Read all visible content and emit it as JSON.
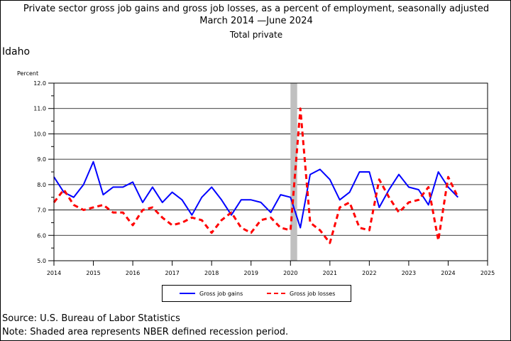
{
  "title": {
    "line1": "Private sector gross job gains and gross job losses, as a percent of employment, seasonally adjusted",
    "line2": "March 2014 —June 2024",
    "line3": "Total private"
  },
  "region": "Idaho",
  "footer": {
    "source": "Source: U.S. Bureau of Labor Statistics",
    "note": "Note: Shaded area represents NBER defined recession period."
  },
  "chart_data": {
    "type": "line",
    "ylabel": "Percent",
    "xlabel": "",
    "xlim": [
      2014,
      2025
    ],
    "ylim": [
      5.0,
      12.0
    ],
    "x_ticks": [
      "2014",
      "2015",
      "2016",
      "2017",
      "2018",
      "2019",
      "2020",
      "2021",
      "2022",
      "2023",
      "2024",
      "2025"
    ],
    "y_ticks": [
      "5.0",
      "6.0",
      "7.0",
      "8.0",
      "9.0",
      "10.0",
      "11.0",
      "12.0"
    ],
    "grid": true,
    "legend_position": "bottom",
    "recession": {
      "start": 2020.0,
      "end": 2020.17,
      "color": "#c0c0c0"
    },
    "x": [
      2014.0,
      2014.25,
      2014.5,
      2014.75,
      2015.0,
      2015.25,
      2015.5,
      2015.75,
      2016.0,
      2016.25,
      2016.5,
      2016.75,
      2017.0,
      2017.25,
      2017.5,
      2017.75,
      2018.0,
      2018.25,
      2018.5,
      2018.75,
      2019.0,
      2019.25,
      2019.5,
      2019.75,
      2020.0,
      2020.25,
      2020.5,
      2020.75,
      2021.0,
      2021.25,
      2021.5,
      2021.75,
      2022.0,
      2022.25,
      2022.5,
      2022.75,
      2023.0,
      2023.25,
      2023.5,
      2023.75,
      2024.0,
      2024.25
    ],
    "series": [
      {
        "name": "Gross job gains",
        "color": "#0000ff",
        "style": "solid",
        "values": [
          8.3,
          7.7,
          7.5,
          8.0,
          8.9,
          7.6,
          7.9,
          7.9,
          8.1,
          7.3,
          7.9,
          7.3,
          7.7,
          7.4,
          6.8,
          7.5,
          7.9,
          7.4,
          6.8,
          7.4,
          7.4,
          7.3,
          6.9,
          7.6,
          7.5,
          6.3,
          8.4,
          8.6,
          8.2,
          7.4,
          7.7,
          8.5,
          8.5,
          7.1,
          7.8,
          8.4,
          7.9,
          7.8,
          7.2,
          8.5,
          7.9,
          7.5
        ]
      },
      {
        "name": "Gross job losses",
        "color": "#ff0000",
        "style": "dashed",
        "values": [
          7.3,
          7.8,
          7.2,
          7.0,
          7.1,
          7.2,
          6.9,
          6.9,
          6.4,
          7.0,
          7.1,
          6.7,
          6.4,
          6.5,
          6.7,
          6.6,
          6.1,
          6.6,
          6.9,
          6.3,
          6.1,
          6.6,
          6.7,
          6.3,
          6.2,
          11.0,
          6.5,
          6.2,
          5.7,
          7.1,
          7.3,
          6.3,
          6.2,
          8.2,
          7.5,
          6.9,
          7.3,
          7.4,
          7.9,
          5.8,
          8.3,
          7.5
        ]
      }
    ]
  }
}
